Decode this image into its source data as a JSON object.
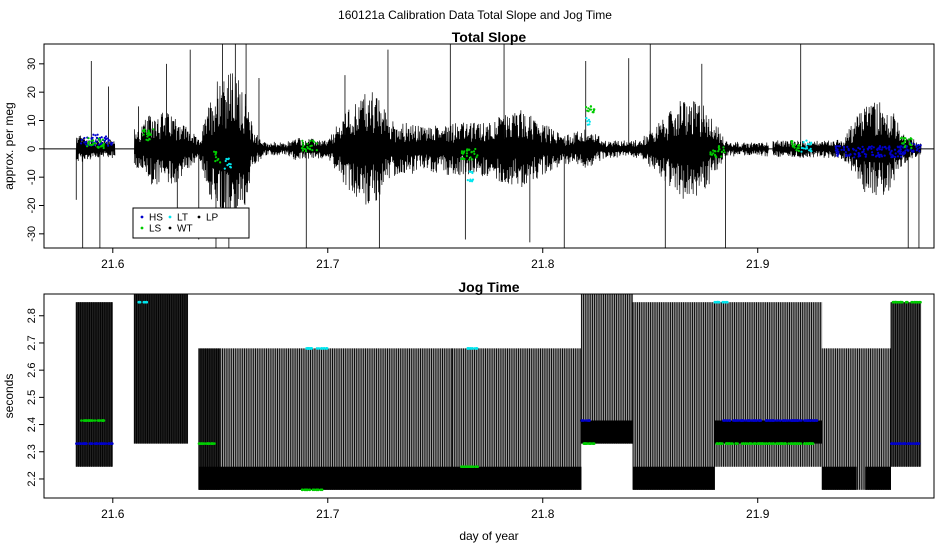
{
  "figure": {
    "title": "160121a   Calibration Data Total Slope and Jog Time",
    "xlabel": "day of year",
    "legend_placement": "lower-left of top panel",
    "legend": [
      {
        "name": "HS",
        "color": "#0000cc"
      },
      {
        "name": "LT",
        "color": "#00e5ee"
      },
      {
        "name": "LP",
        "color": "#000000"
      },
      {
        "name": "LS",
        "color": "#00cc00"
      },
      {
        "name": "WT",
        "color": "#000000"
      }
    ],
    "line_color": "#000000"
  },
  "chart_data": [
    {
      "type": "line",
      "title": "Total Slope",
      "xlabel": "",
      "ylabel": "approx. per meg",
      "xlim": [
        21.568,
        21.982
      ],
      "ylim": [
        -35,
        37
      ],
      "xticks": [
        "21.6",
        "21.7",
        "21.8",
        "21.9"
      ],
      "xtick_values": [
        21.6,
        21.7,
        21.8,
        21.9
      ],
      "yticks": [
        "-30",
        "-20",
        "-10",
        "0",
        "10",
        "20",
        "30"
      ],
      "ytick_values": [
        -30,
        -20,
        -10,
        0,
        10,
        20,
        30
      ],
      "reference_line": 0,
      "active_segments": [
        [
          21.583,
          21.601
        ],
        [
          21.61,
          21.67
        ],
        [
          21.67,
          21.905
        ],
        [
          21.907,
          21.976
        ]
      ],
      "noise_envelope": [
        [
          21.583,
          5
        ],
        [
          21.59,
          4
        ],
        [
          21.6,
          3
        ],
        [
          21.612,
          8
        ],
        [
          21.62,
          14
        ],
        [
          21.63,
          12
        ],
        [
          21.64,
          3
        ],
        [
          21.65,
          30
        ],
        [
          21.66,
          25
        ],
        [
          21.665,
          8
        ],
        [
          21.67,
          2.5
        ],
        [
          21.68,
          2
        ],
        [
          21.685,
          4
        ],
        [
          21.7,
          3
        ],
        [
          21.71,
          15
        ],
        [
          21.72,
          22
        ],
        [
          21.73,
          10
        ],
        [
          21.745,
          8
        ],
        [
          21.76,
          10
        ],
        [
          21.77,
          9
        ],
        [
          21.79,
          14
        ],
        [
          21.8,
          9
        ],
        [
          21.81,
          5
        ],
        [
          21.82,
          7
        ],
        [
          21.83,
          3
        ],
        [
          21.845,
          3
        ],
        [
          21.855,
          10
        ],
        [
          21.865,
          18
        ],
        [
          21.875,
          16
        ],
        [
          21.885,
          3
        ],
        [
          21.895,
          2
        ],
        [
          21.91,
          3
        ],
        [
          21.93,
          3
        ],
        [
          21.94,
          4
        ],
        [
          21.95,
          16
        ],
        [
          21.96,
          18
        ],
        [
          21.967,
          6
        ],
        [
          21.976,
          2
        ]
      ],
      "spikes": [
        [
          21.583,
          -18
        ],
        [
          21.586,
          -35
        ],
        [
          21.59,
          31
        ],
        [
          21.594,
          -35
        ],
        [
          21.598,
          22
        ],
        [
          21.612,
          15
        ],
        [
          21.625,
          30
        ],
        [
          21.63,
          -22
        ],
        [
          21.636,
          35
        ],
        [
          21.64,
          -32
        ],
        [
          21.648,
          -35
        ],
        [
          21.651,
          37
        ],
        [
          21.654,
          -35
        ],
        [
          21.657,
          37
        ],
        [
          21.662,
          37
        ],
        [
          21.668,
          25
        ],
        [
          21.69,
          -35
        ],
        [
          21.708,
          26
        ],
        [
          21.724,
          -35
        ],
        [
          21.728,
          35
        ],
        [
          21.757,
          37
        ],
        [
          21.764,
          -32
        ],
        [
          21.782,
          37
        ],
        [
          21.794,
          -33
        ],
        [
          21.81,
          -35
        ],
        [
          21.82,
          31
        ],
        [
          21.84,
          32
        ],
        [
          21.85,
          37
        ],
        [
          21.857,
          -35
        ],
        [
          21.874,
          30
        ],
        [
          21.885,
          -35
        ],
        [
          21.92,
          37
        ],
        [
          21.97,
          -35
        ],
        [
          21.975,
          -35
        ]
      ],
      "series": [
        {
          "name": "HS",
          "color": "#0000cc",
          "clusters": [
            [
              21.585,
              21.6,
              3
            ],
            [
              21.936,
              21.97,
              -1
            ],
            [
              21.966,
              21.976,
              0
            ]
          ]
        },
        {
          "name": "LT",
          "color": "#00e5ee",
          "clusters": [
            [
              21.652,
              21.655,
              -5
            ],
            [
              21.765,
              21.768,
              -10
            ],
            [
              21.82,
              21.822,
              10
            ],
            [
              21.92,
              21.925,
              1
            ]
          ]
        },
        {
          "name": "LS",
          "color": "#00cc00",
          "clusters": [
            [
              21.588,
              21.596,
              2
            ],
            [
              21.614,
              21.62,
              5
            ],
            [
              21.647,
              21.65,
              -3
            ],
            [
              21.688,
              21.695,
              1
            ],
            [
              21.762,
              21.77,
              -2
            ],
            [
              21.82,
              21.824,
              14
            ],
            [
              21.878,
              21.885,
              -1
            ],
            [
              21.915,
              21.92,
              1
            ],
            [
              21.966,
              21.972,
              2
            ]
          ]
        }
      ]
    },
    {
      "type": "line",
      "title": "Jog Time",
      "xlabel": "day of year",
      "ylabel": "seconds",
      "xlim": [
        21.568,
        21.982
      ],
      "ylim": [
        2.13,
        2.88
      ],
      "xticks": [
        "21.6",
        "21.7",
        "21.8",
        "21.9"
      ],
      "xtick_values": [
        21.6,
        21.7,
        21.8,
        21.9
      ],
      "yticks": [
        "2.2",
        "2.3",
        "2.4",
        "2.5",
        "2.6",
        "2.7",
        "2.8"
      ],
      "ytick_values": [
        2.2,
        2.3,
        2.4,
        2.5,
        2.6,
        2.7,
        2.8
      ],
      "segments": [
        {
          "x0": 21.583,
          "x1": 21.6,
          "lo": 2.245,
          "hi": 2.85,
          "fill": "#222222"
        },
        {
          "x0": 21.61,
          "x1": 21.635,
          "lo": 2.33,
          "hi": 2.88,
          "fill": "#222222"
        },
        {
          "x0": 21.64,
          "x1": 21.65,
          "lo": 2.16,
          "hi": 2.68,
          "fill": "#222222"
        },
        {
          "x0": 21.65,
          "x1": 21.758,
          "lo": 2.16,
          "hi": 2.68,
          "fill": "#9a9a9a"
        },
        {
          "x0": 21.758,
          "x1": 21.818,
          "lo": 2.16,
          "hi": 2.68,
          "fill": "#9a9a9a"
        },
        {
          "x0": 21.818,
          "x1": 21.842,
          "lo": 2.33,
          "hi": 2.88,
          "fill": "#9a9a9a"
        },
        {
          "x0": 21.842,
          "x1": 21.88,
          "lo": 2.16,
          "hi": 2.85,
          "fill": "#9a9a9a"
        },
        {
          "x0": 21.88,
          "x1": 21.93,
          "lo": 2.245,
          "hi": 2.85,
          "fill": "#9a9a9a"
        },
        {
          "x0": 21.93,
          "x1": 21.962,
          "lo": 2.16,
          "hi": 2.68,
          "fill": "#9a9a9a"
        },
        {
          "x0": 21.962,
          "x1": 21.976,
          "lo": 2.245,
          "hi": 2.85,
          "fill": "#444444"
        }
      ],
      "dark_bands": [
        {
          "x0": 21.64,
          "x1": 21.818,
          "lo": 2.16,
          "hi": 2.245
        },
        {
          "x0": 21.842,
          "x1": 21.88,
          "lo": 2.16,
          "hi": 2.245
        },
        {
          "x0": 21.88,
          "x1": 21.93,
          "lo": 2.33,
          "hi": 2.415
        },
        {
          "x0": 21.93,
          "x1": 21.946,
          "lo": 2.16,
          "hi": 2.245
        },
        {
          "x0": 21.95,
          "x1": 21.962,
          "lo": 2.16,
          "hi": 2.245
        },
        {
          "x0": 21.818,
          "x1": 21.842,
          "lo": 2.33,
          "hi": 2.415
        }
      ],
      "levels": [
        2.16,
        2.245,
        2.33,
        2.415,
        2.68,
        2.85
      ],
      "series": [
        {
          "name": "HS",
          "color": "#0000cc",
          "clusters": [
            [
              21.583,
              21.6,
              2.33
            ],
            [
              21.883,
              21.928,
              2.415
            ],
            [
              21.962,
              21.976,
              2.33
            ],
            [
              21.818,
              21.822,
              2.415
            ]
          ]
        },
        {
          "name": "LT",
          "color": "#00e5ee",
          "clusters": [
            [
              21.612,
              21.616,
              2.85
            ],
            [
              21.69,
              21.7,
              2.68
            ],
            [
              21.765,
              21.77,
              2.68
            ],
            [
              21.88,
              21.886,
              2.85
            ]
          ]
        },
        {
          "name": "LS",
          "color": "#00cc00",
          "clusters": [
            [
              21.585,
              21.596,
              2.415
            ],
            [
              21.64,
              21.648,
              2.33
            ],
            [
              21.688,
              21.698,
              2.16
            ],
            [
              21.762,
              21.77,
              2.245
            ],
            [
              21.818,
              21.824,
              2.33
            ],
            [
              21.88,
              21.926,
              2.33
            ],
            [
              21.962,
              21.976,
              2.85
            ]
          ]
        }
      ]
    }
  ]
}
